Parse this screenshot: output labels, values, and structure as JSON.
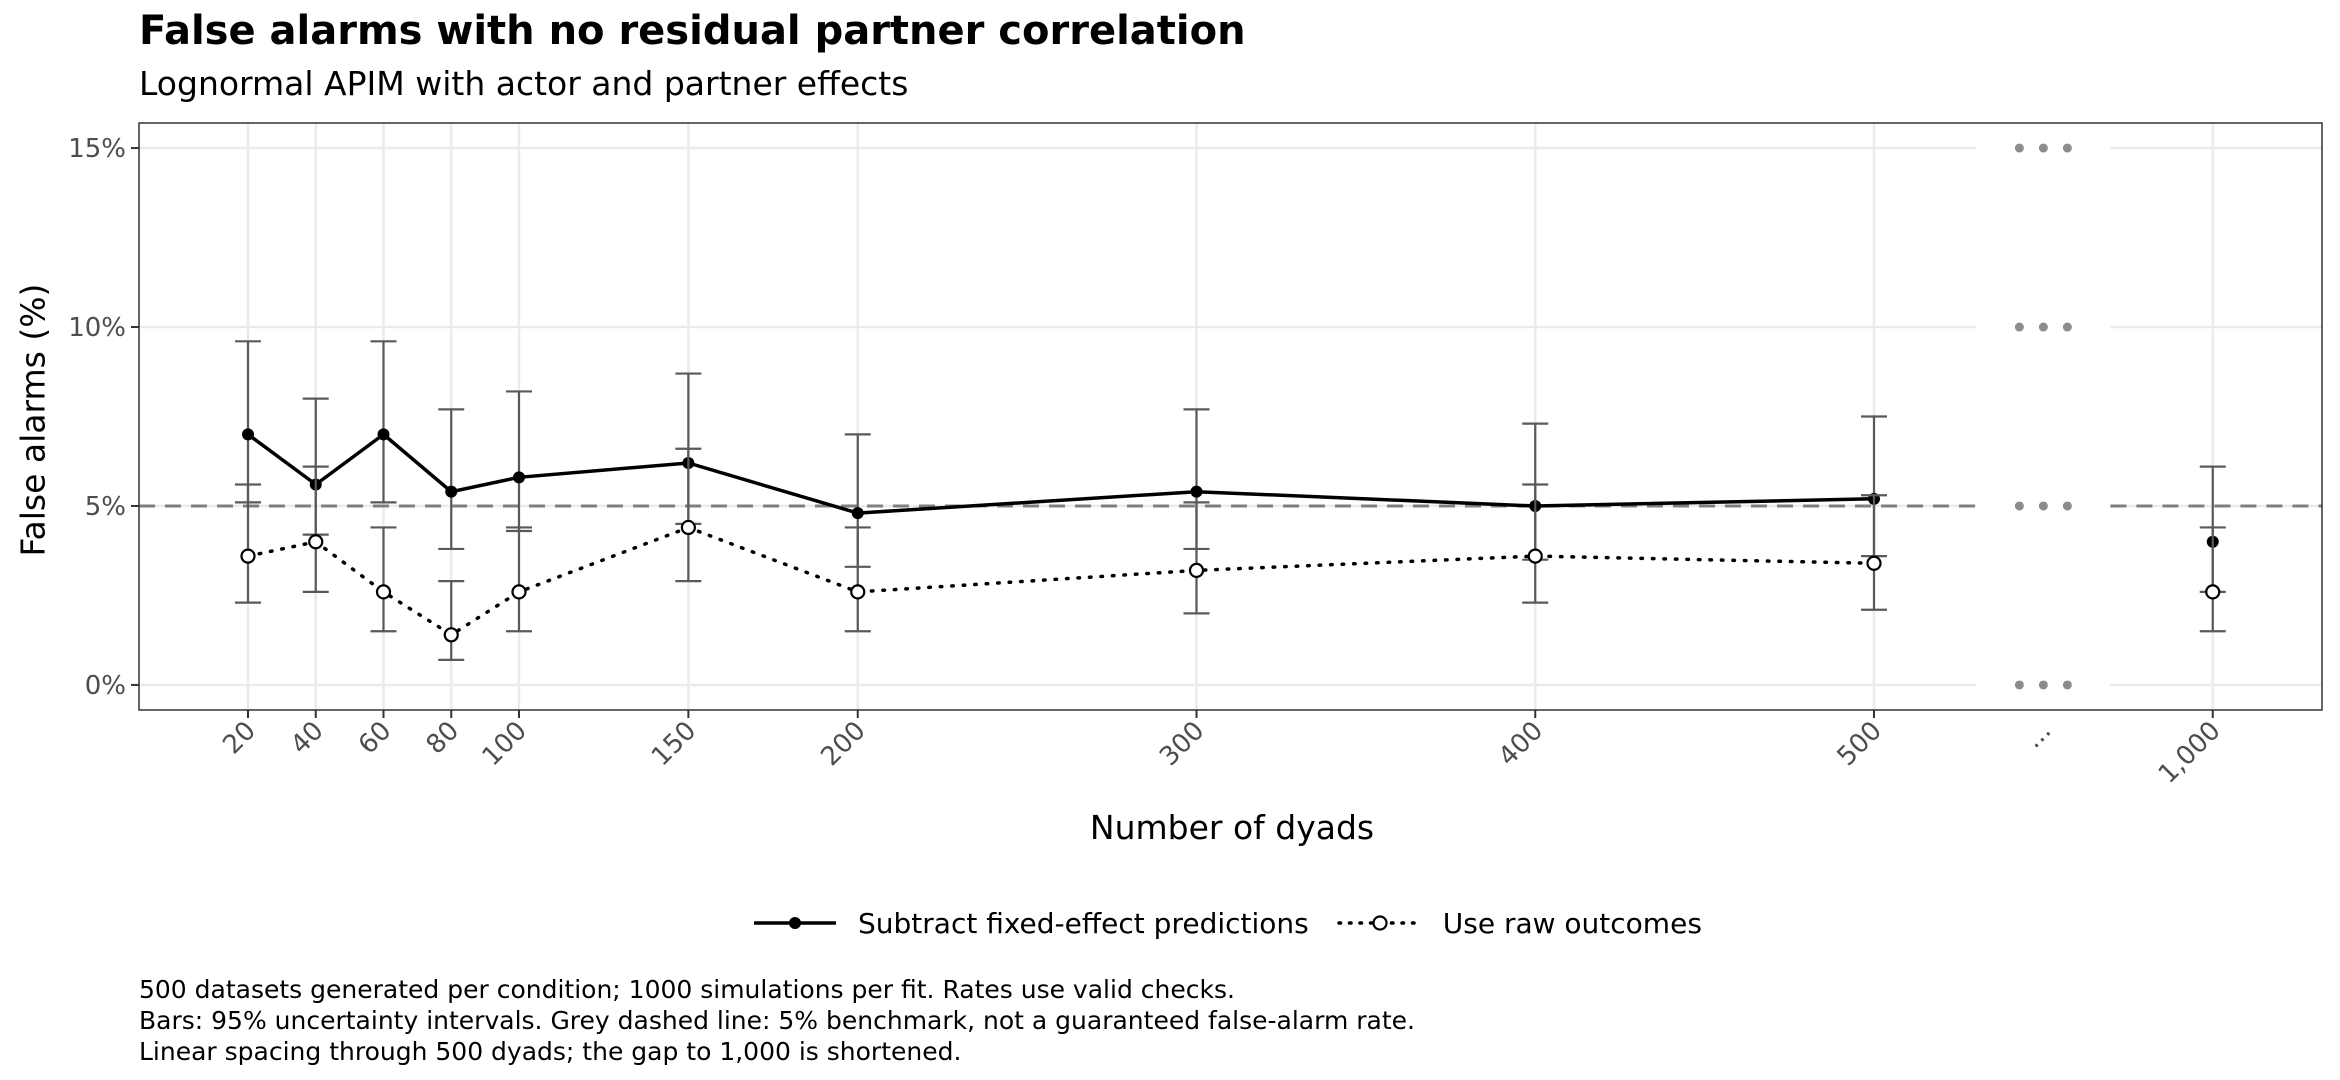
{
  "chart_data": {
    "type": "line",
    "title": "False alarms with no residual partner correlation",
    "subtitle": "Lognormal APIM with actor and partner effects",
    "xlabel": "Number of dyads",
    "ylabel": "False alarms (%)",
    "x_categories": [
      "20",
      "40",
      "60",
      "80",
      "100",
      "150",
      "200",
      "300",
      "400",
      "500",
      "...",
      "1,000"
    ],
    "x_values": [
      20,
      40,
      60,
      80,
      100,
      150,
      200,
      300,
      400,
      500,
      null,
      1000
    ],
    "y_ticks": [
      {
        "value": 0,
        "label": "0%"
      },
      {
        "value": 5,
        "label": "5%"
      },
      {
        "value": 10,
        "label": "10%"
      },
      {
        "value": 15,
        "label": "15%"
      }
    ],
    "ylim": [
      -0.7,
      15.7
    ],
    "grid": true,
    "legend_position": "bottom",
    "benchmark": {
      "value": 5,
      "style": "dashed",
      "color": "#7f7f7f"
    },
    "axis_break": {
      "label": "...",
      "between": [
        500,
        1000
      ]
    },
    "series": [
      {
        "name": "Subtract fixed-effect predictions",
        "line_style": "solid",
        "marker": "filled-circle",
        "values": [
          7.0,
          5.6,
          7.0,
          5.4,
          5.8,
          6.2,
          4.8,
          5.4,
          5.0,
          5.2,
          null,
          4.0
        ],
        "ci_low": [
          5.1,
          4.2,
          5.1,
          3.8,
          4.3,
          4.5,
          3.3,
          3.8,
          3.5,
          3.6,
          null,
          2.6
        ],
        "ci_high": [
          9.6,
          8.0,
          9.6,
          7.7,
          8.2,
          8.7,
          7.0,
          7.7,
          7.3,
          7.5,
          null,
          6.1
        ]
      },
      {
        "name": "Use raw outcomes",
        "line_style": "dotted",
        "marker": "open-circle",
        "values": [
          3.6,
          4.0,
          2.6,
          1.4,
          2.6,
          4.4,
          2.6,
          3.2,
          3.6,
          3.4,
          null,
          2.6
        ],
        "ci_low": [
          2.3,
          2.6,
          1.5,
          0.7,
          1.5,
          2.9,
          1.5,
          2.0,
          2.3,
          2.1,
          null,
          1.5
        ],
        "ci_high": [
          5.6,
          6.1,
          4.4,
          2.9,
          4.4,
          6.6,
          4.4,
          5.1,
          5.6,
          5.3,
          null,
          4.4
        ]
      }
    ],
    "colors": {
      "line": "#000000",
      "errorbar": "#595959",
      "grid": "#ebebeb",
      "benchmark": "#7f7f7f"
    }
  },
  "footnote": [
    "500 datasets generated per condition; 1000 simulations per fit. Rates use valid checks.",
    "Bars: 95% uncertainty intervals. Grey dashed line: 5% benchmark, not a guaranteed false-alarm rate.",
    "Linear spacing through 500 dyads; the gap to 1,000 is shortened."
  ]
}
